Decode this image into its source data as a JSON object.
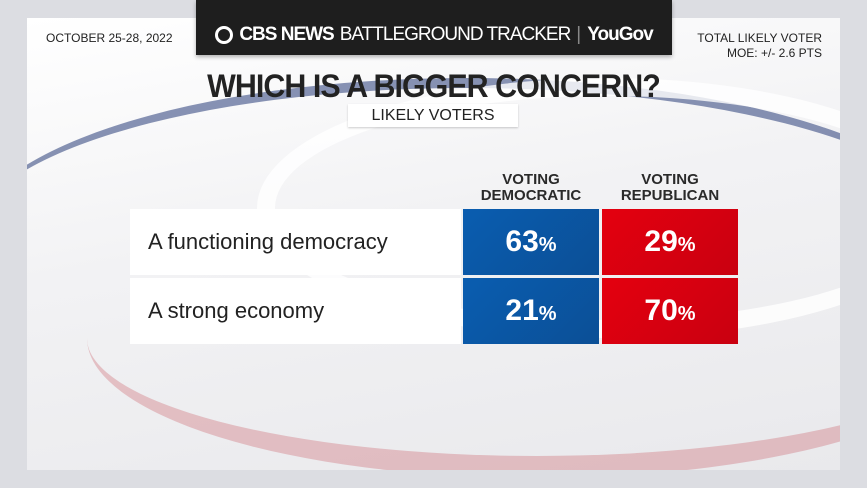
{
  "header": {
    "brand": "CBS NEWS",
    "program": "BATTLEGROUND TRACKER",
    "partner": "YouGov"
  },
  "date": "OCTOBER 25-28, 2022",
  "sample": "TOTAL LIKELY VOTER",
  "moe": "MOE: +/- 2.6  PTS",
  "colors": {
    "democratic": "#0b57a4",
    "republican": "#d9000e"
  },
  "chart_data": {
    "type": "table",
    "title": "WHICH IS A BIGGER CONCERN?",
    "subtitle": "LIKELY VOTERS",
    "columns": [
      "VOTING DEMOCRATIC",
      "VOTING REPUBLICAN"
    ],
    "column_lines": [
      [
        "VOTING",
        "DEMOCRATIC"
      ],
      [
        "VOTING",
        "REPUBLICAN"
      ]
    ],
    "rows": [
      {
        "label": "A functioning democracy",
        "values": [
          "63",
          "29"
        ]
      },
      {
        "label": "A strong economy",
        "values": [
          "21",
          "70"
        ]
      }
    ],
    "unit": "%"
  }
}
